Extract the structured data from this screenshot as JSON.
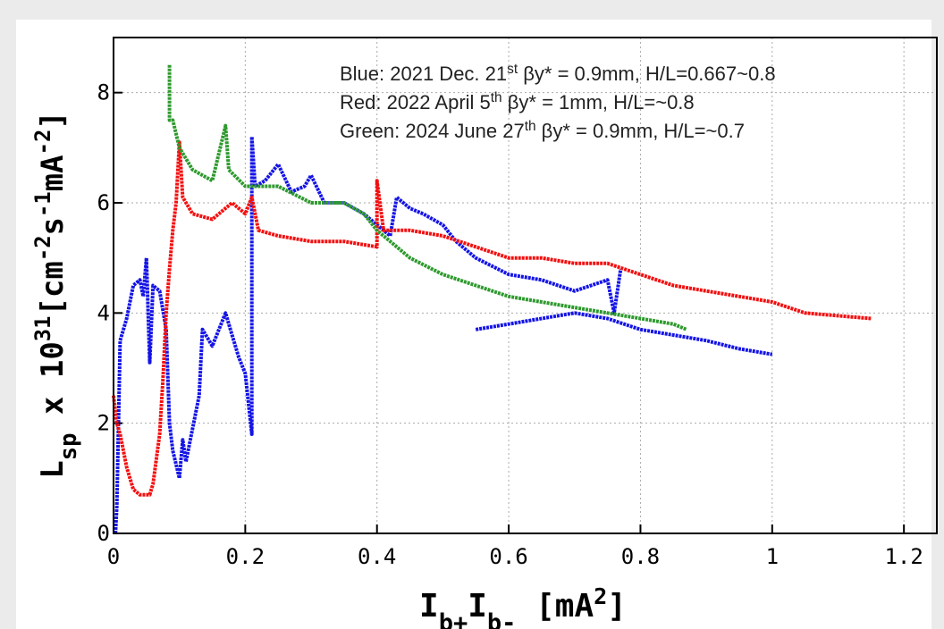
{
  "chart_data": {
    "type": "line",
    "xlim": [
      0,
      1.25
    ],
    "ylim": [
      0,
      9
    ],
    "xticks": [
      0,
      0.2,
      0.4,
      0.6,
      0.8,
      1,
      1.2
    ],
    "yticks": [
      0,
      2,
      4,
      6,
      8
    ],
    "grid": true,
    "xlabel": {
      "parts": [
        "I",
        "b+",
        "I",
        "b-",
        "  [mA",
        "2",
        "]"
      ],
      "shifts": [
        "base",
        "sub",
        "base",
        "sub",
        "base",
        "super",
        "base"
      ]
    },
    "ylabel": {
      "parts": [
        "L",
        "sp",
        " x 10",
        "31",
        "[cm",
        "-2",
        "s",
        "-1",
        "mA",
        "-2",
        "]"
      ],
      "shifts": [
        "base",
        "sub",
        "base",
        "super",
        "base",
        "super",
        "base",
        "super",
        "base",
        "super",
        "base"
      ]
    },
    "annotations": [
      {
        "parts": [
          "Blue: 2021 Dec. 21",
          "st",
          " βy* = 0.9mm, H/L=0.667~0.8"
        ],
        "shifts": [
          "base",
          "super",
          "base"
        ]
      },
      {
        "parts": [
          "Red: 2022 April 5",
          "th",
          " βy* = 1mm, H/L=~0.8"
        ],
        "shifts": [
          "base",
          "super",
          "base"
        ]
      },
      {
        "parts": [
          "Green: 2024 June  27",
          "th",
          " βy* = 0.9mm, H/L=~0.7"
        ],
        "shifts": [
          "base",
          "super",
          "base"
        ]
      }
    ],
    "series": [
      {
        "color": "#1414e6",
        "x": [
          0.003,
          0.005,
          0.01,
          0.02,
          0.03,
          0.04,
          0.045,
          0.05,
          0.055,
          0.06,
          0.07,
          0.08,
          0.085,
          0.09,
          0.1,
          0.105,
          0.11,
          0.13,
          0.135,
          0.15,
          0.17,
          0.18,
          0.19,
          0.2,
          0.21,
          0.21,
          0.215,
          0.23,
          0.25,
          0.27,
          0.29,
          0.3,
          0.32,
          0.35,
          0.38,
          0.4,
          0.42,
          0.43,
          0.45,
          0.47,
          0.5,
          0.52,
          0.55,
          0.6,
          0.65,
          0.7,
          0.75,
          0.76,
          0.77,
          null,
          0.55,
          0.6,
          0.65,
          0.7,
          0.75,
          0.8,
          0.85,
          0.9,
          0.95,
          1.0
        ],
        "values": [
          0,
          0.5,
          3.5,
          3.9,
          4.5,
          4.6,
          4.3,
          5.0,
          3.1,
          4.5,
          4.4,
          3.7,
          2.0,
          1.5,
          1.0,
          1.7,
          1.3,
          2.5,
          3.7,
          3.4,
          4.0,
          3.6,
          3.2,
          2.9,
          1.8,
          7.2,
          6.3,
          6.4,
          6.7,
          6.2,
          6.3,
          6.5,
          6.0,
          6.0,
          5.8,
          5.6,
          5.4,
          6.1,
          5.9,
          5.8,
          5.6,
          5.3,
          5.0,
          4.7,
          4.6,
          4.4,
          4.6,
          4.0,
          4.8,
          null,
          3.7,
          3.8,
          3.9,
          4.0,
          3.9,
          3.7,
          3.6,
          3.5,
          3.35,
          3.25
        ]
      },
      {
        "color": "#f21010",
        "x": [
          0,
          0.005,
          0.01,
          0.02,
          0.03,
          0.04,
          0.055,
          0.06,
          0.07,
          0.075,
          0.08,
          0.085,
          0.09,
          0.095,
          0.1,
          0.105,
          0.12,
          0.15,
          0.18,
          0.2,
          0.21,
          0.22,
          0.25,
          0.3,
          0.35,
          0.4,
          0.4,
          0.41,
          0.45,
          0.5,
          0.55,
          0.6,
          0.65,
          0.7,
          0.75,
          0.8,
          0.85,
          0.9,
          0.95,
          1.0,
          1.05,
          1.1,
          1.15
        ],
        "values": [
          2.5,
          2.0,
          1.8,
          1.2,
          0.8,
          0.7,
          0.7,
          0.9,
          1.8,
          2.8,
          4.0,
          4.8,
          5.5,
          6.0,
          7.1,
          6.1,
          5.8,
          5.7,
          6.0,
          5.8,
          6.1,
          5.5,
          5.4,
          5.3,
          5.3,
          5.2,
          6.4,
          5.5,
          5.5,
          5.4,
          5.2,
          5.0,
          5.0,
          4.9,
          4.9,
          4.7,
          4.5,
          4.4,
          4.3,
          4.2,
          4.0,
          3.95,
          3.9
        ]
      },
      {
        "color": "#2e9a2e",
        "x": [
          0.085,
          0.085,
          0.09,
          0.1,
          0.12,
          0.15,
          0.17,
          0.175,
          0.2,
          0.25,
          0.3,
          0.35,
          0.38,
          0.4,
          0.43,
          0.45,
          0.5,
          0.55,
          0.6,
          0.65,
          0.7,
          0.75,
          0.8,
          0.85,
          0.87
        ],
        "values": [
          8.5,
          7.5,
          7.5,
          7.0,
          6.6,
          6.4,
          7.4,
          6.6,
          6.3,
          6.3,
          6.0,
          6.0,
          5.8,
          5.5,
          5.2,
          5.0,
          4.7,
          4.5,
          4.3,
          4.2,
          4.1,
          4.0,
          3.9,
          3.8,
          3.7
        ]
      }
    ]
  }
}
